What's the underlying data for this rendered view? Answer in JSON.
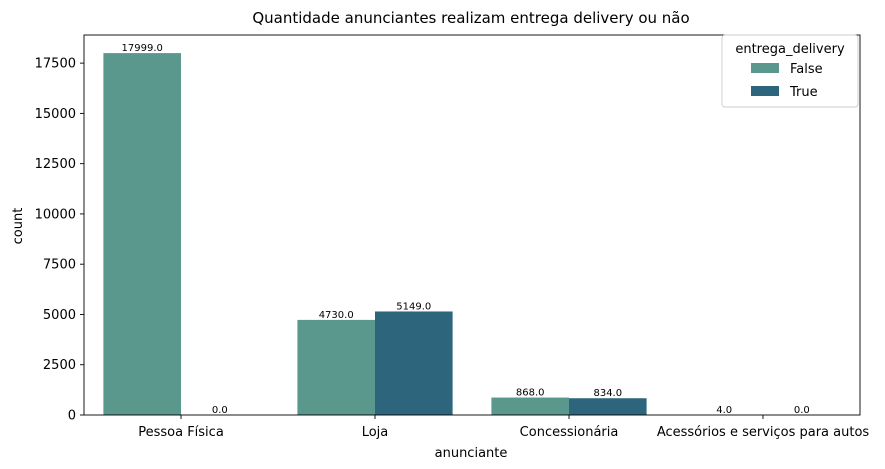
{
  "chart_data": {
    "type": "bar",
    "title": "Quantidade anunciantes realizam entrega delivery ou não",
    "xlabel": "anunciante",
    "ylabel": "count",
    "categories": [
      "Pessoa Física",
      "Loja",
      "Concessionária",
      "Acessórios e serviços para autos"
    ],
    "series": [
      {
        "name": "False",
        "values": [
          17999,
          4730,
          868,
          4
        ],
        "labels": [
          "17999.0",
          "4730.0",
          "868.0",
          "4.0"
        ],
        "color": "#5a978c"
      },
      {
        "name": "True",
        "values": [
          0,
          5149,
          834,
          0
        ],
        "labels": [
          "0.0",
          "5149.0",
          "834.0",
          "0.0"
        ],
        "color": "#2d667c"
      }
    ],
    "yticks": [
      0,
      2500,
      5000,
      7500,
      10000,
      12500,
      15000,
      17500
    ],
    "ylim": [
      0,
      18899
    ],
    "grid": false,
    "legend": {
      "title": "entrega_delivery",
      "placement": "top-right"
    }
  }
}
